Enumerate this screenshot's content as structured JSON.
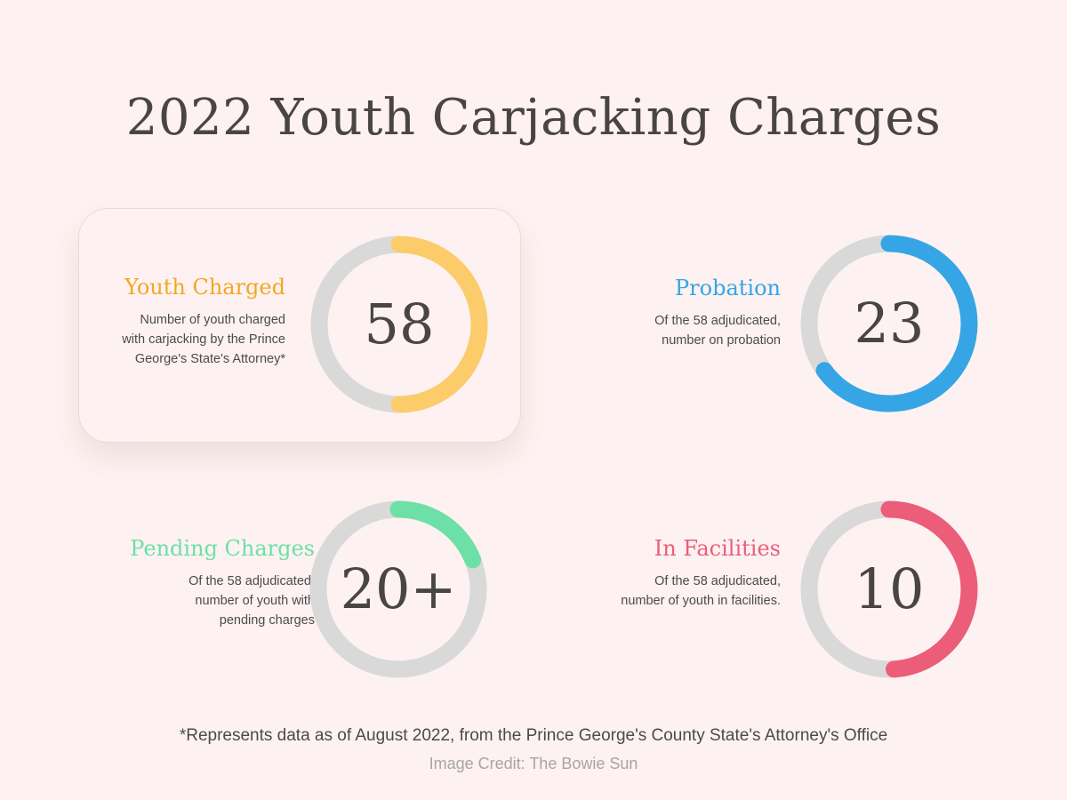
{
  "title": "2022 Youth Carjacking Charges",
  "colors": {
    "background": "#fdf2f1",
    "track": "#d9d9d9",
    "youth_charged": "#fccc6b",
    "probation": "#36a5e6",
    "pending": "#6de0a7",
    "facilities": "#ec5d79"
  },
  "chart_data": [
    {
      "type": "donut",
      "title": "Youth Charged",
      "value_label": "58",
      "value": 58,
      "fill_fraction": 0.5,
      "color": "#fccc6b",
      "description": "Number of youth charged\nwith carjacking by the Prince\nGeorge's State's Attorney*",
      "highlighted": true
    },
    {
      "type": "donut",
      "title": "Probation",
      "value_label": "23",
      "value": 23,
      "fill_fraction": 0.65,
      "color": "#36a5e6",
      "description": "Of the 58 adjudicated,\nnumber on probation",
      "highlighted": false
    },
    {
      "type": "donut",
      "title": "Pending Charges",
      "value_label": "20+",
      "value": 20,
      "fill_fraction": 0.19,
      "color": "#6de0a7",
      "description": "Of the 58 adjudicated,\nnumber  of youth with\npending charges",
      "highlighted": false
    },
    {
      "type": "donut",
      "title": "In Facilities",
      "value_label": "10",
      "value": 10,
      "fill_fraction": 0.49,
      "color": "#ec5d79",
      "description": "Of the 58 adjudicated,\nnumber of youth in facilities.",
      "highlighted": false
    }
  ],
  "footnote": "*Represents data as of August 2022, from the Prince George's County State's Attorney's Office",
  "credit": "Image Credit: The Bowie Sun"
}
